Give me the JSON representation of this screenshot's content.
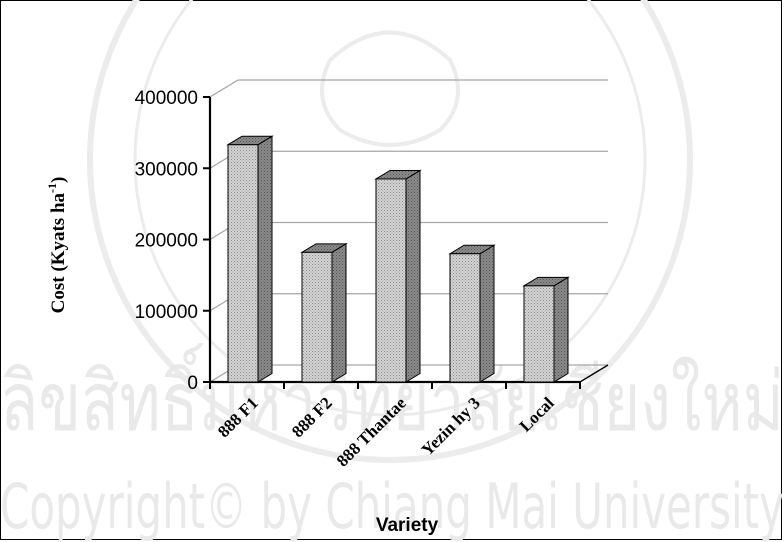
{
  "chart_data": {
    "type": "bar",
    "categories": [
      "888 F1",
      "888 F2",
      "888 Thantae",
      "Yezin hy 3",
      "Local"
    ],
    "values": [
      333000,
      182000,
      285000,
      180000,
      135000
    ],
    "xlabel": "Variety",
    "ylabel": "Cost (Kyats ha",
    "ylabel_sup": "-1",
    "ylabel_tail": ")",
    "ylim": [
      0,
      400000
    ],
    "yticks": [
      "0",
      "100000",
      "200000",
      "300000",
      "400000"
    ],
    "grid": true,
    "style": "3d-column"
  },
  "watermark": {
    "line1": "ลิขสิทธิ์มหาวิทยาลัยเชียงใหม่",
    "line2": "Copyright© by Chiang Mai University",
    "seal_text": "CHIANG MAI UNIVERSITY"
  },
  "colors": {
    "bar_front": "#c8c8c8",
    "bar_side": "#8a8a8a",
    "bar_top": "#9e9e9e",
    "grid": "#a6a6a6",
    "axis": "#000000",
    "watermark": "#e6e6e6"
  }
}
